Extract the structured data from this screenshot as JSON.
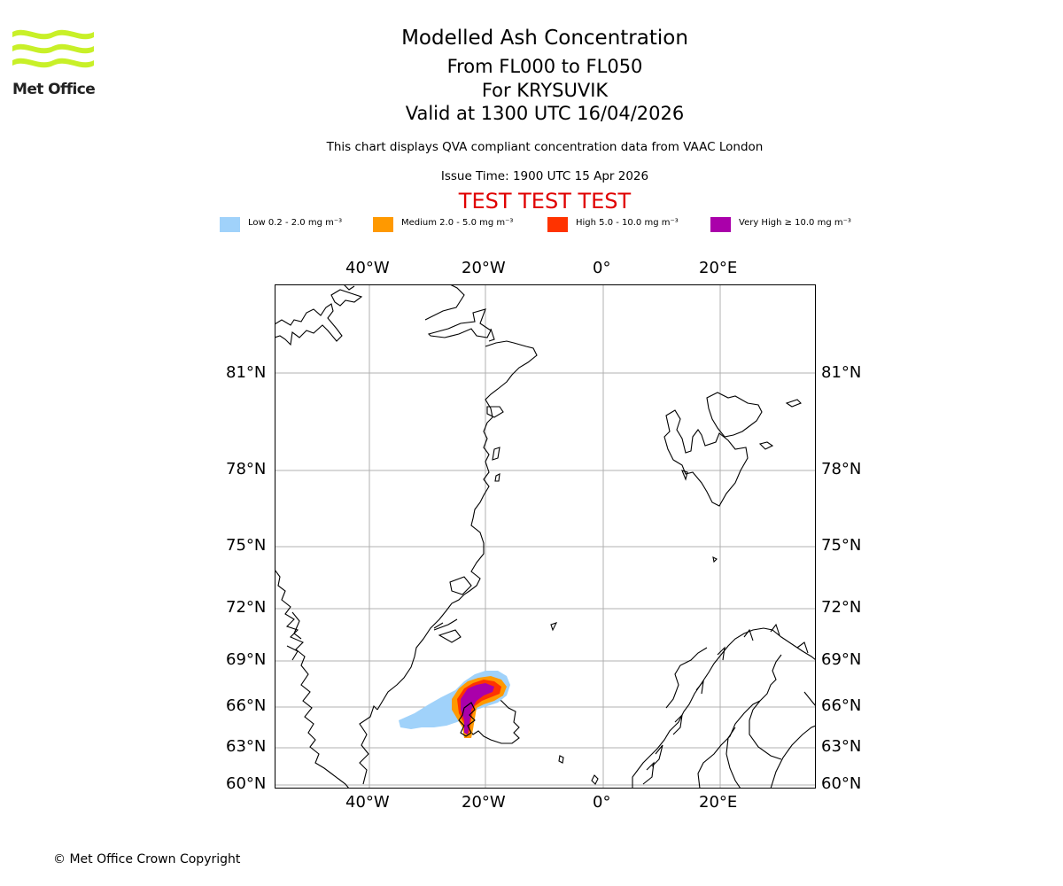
{
  "logo": {
    "text": "Met Office",
    "color": "#c8f028"
  },
  "header": {
    "title": "Modelled Ash Concentration",
    "levels": "From FL000 to FL050",
    "volcano": "For KRYSUVIK",
    "valid": "Valid at 1300 UTC 16/04/2026",
    "description": "This chart displays QVA compliant concentration data from VAAC London",
    "issue": "Issue Time: 1900 UTC 15 Apr 2026",
    "test_banner": "TEST TEST TEST"
  },
  "legend": [
    {
      "label": "Low 0.2 - 2.0 mg m⁻³",
      "color": "#a0d2fa"
    },
    {
      "label": "Medium 2.0 - 5.0 mg m⁻³",
      "color": "#ff9900"
    },
    {
      "label": "High 5.0 - 10.0 mg m⁻³",
      "color": "#ff3300"
    },
    {
      "label": "Very High ≥ 10.0 mg m⁻³",
      "color": "#aa00aa"
    }
  ],
  "map": {
    "lon_ticks": [
      "40°W",
      "20°W",
      "0°",
      "20°E"
    ],
    "lat_ticks": [
      "81°N",
      "78°N",
      "75°N",
      "72°N",
      "69°N",
      "66°N",
      "63°N",
      "60°N"
    ]
  },
  "footer": {
    "copyright": "© Met Office Crown Copyright"
  }
}
